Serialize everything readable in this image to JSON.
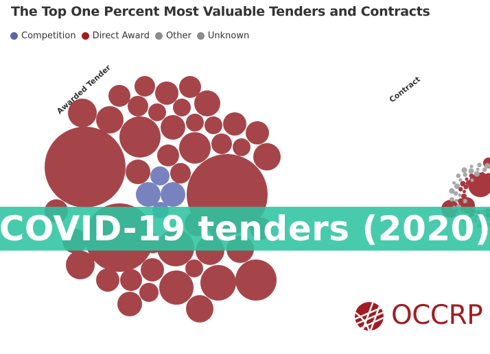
{
  "chart_data": {
    "type": "bubble",
    "title": "The Top One Percent Most Valuable Tenders and Contracts",
    "legend": [
      {
        "name": "Competition",
        "color": "#5c67a8"
      },
      {
        "name": "Direct Award",
        "color": "#a01c22"
      },
      {
        "name": "Other",
        "color": "#8c8c8c"
      },
      {
        "name": "Unknown",
        "color": "#8c8c8c"
      }
    ],
    "groups": [
      "Awarded Tender",
      "Contract"
    ]
  },
  "banner": {
    "text": "COVID-19 tenders (2020)"
  },
  "logo": {
    "text": "OCCRP"
  }
}
